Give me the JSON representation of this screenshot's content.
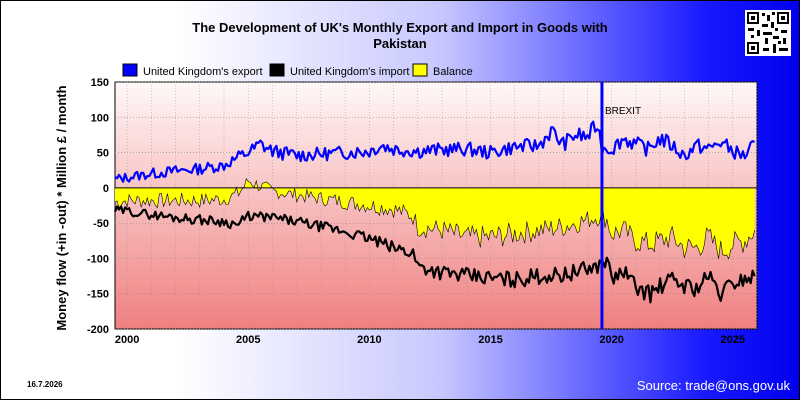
{
  "header": {
    "title_line1": "The Development of UK's Monthly Export and Import in Goods with",
    "title_line2": "Pakistan"
  },
  "footer": {
    "date_stamp": "16.7.2026",
    "source": "Source: trade@ons.gov.uk"
  },
  "colors": {
    "export": "#0000ff",
    "import": "#000000",
    "balance": "#ffff00",
    "brexit_line": "#0000ff"
  },
  "chart_data": {
    "type": "line",
    "ylabel": "Money flow (+in -out) * Million £ / month",
    "ylim": [
      -200,
      150
    ],
    "y_ticks": [
      150,
      100,
      50,
      0,
      -50,
      -100,
      -150,
      -200
    ],
    "xlim": [
      1999.5,
      2026.0
    ],
    "x_ticks": [
      2000,
      2005,
      2010,
      2015,
      2020,
      2025
    ],
    "grid": true,
    "legend_position": "top",
    "annotations": [
      {
        "label": "BREXIT",
        "x": 2019.6
      }
    ],
    "series": [
      {
        "name": "United Kingdom's export",
        "color": "#0000ff",
        "x": [
          1999.5,
          2000,
          2001,
          2002,
          2003,
          2004,
          2004.6,
          2005,
          2005.5,
          2006,
          2007,
          2008,
          2009,
          2010,
          2010.5,
          2011,
          2012,
          2013,
          2014,
          2015,
          2016,
          2017,
          2017.5,
          2018,
          2018.5,
          2019,
          2019.4,
          2019.6,
          2020,
          2020.5,
          2021,
          2021.5,
          2022,
          2022.5,
          2023,
          2023.5,
          2024,
          2024.5,
          2025,
          2025.5,
          2025.9
        ],
        "y": [
          12,
          15,
          20,
          24,
          27,
          32,
          44,
          50,
          62,
          52,
          46,
          48,
          50,
          52,
          60,
          55,
          52,
          54,
          55,
          50,
          58,
          60,
          80,
          62,
          75,
          72,
          90,
          58,
          55,
          70,
          62,
          55,
          70,
          60,
          45,
          60,
          55,
          65,
          52,
          45,
          65
        ]
      },
      {
        "name": "United Kingdom's import",
        "color": "#000000",
        "x": [
          1999.5,
          2000,
          2001,
          2002,
          2003,
          2004,
          2004.6,
          2005,
          2006,
          2007,
          2008,
          2009,
          2010,
          2011,
          2011.8,
          2012,
          2013,
          2014,
          2015,
          2016,
          2017,
          2018,
          2019,
          2019.5,
          2019.8,
          2020,
          2020.5,
          2021,
          2021.6,
          2022,
          2022.5,
          2023,
          2023.5,
          2024,
          2024.5,
          2025,
          2025.5,
          2025.9
        ],
        "y": [
          -32,
          -33,
          -38,
          -42,
          -45,
          -48,
          -52,
          -40,
          -42,
          -48,
          -55,
          -62,
          -72,
          -85,
          -92,
          -110,
          -120,
          -125,
          -128,
          -130,
          -125,
          -123,
          -115,
          -110,
          -100,
          -130,
          -118,
          -140,
          -150,
          -140,
          -130,
          -138,
          -142,
          -125,
          -150,
          -135,
          -128,
          -125
        ]
      },
      {
        "name": "Balance",
        "color": "#ffff00",
        "x": [
          1999.5,
          2000,
          2001,
          2002,
          2003,
          2004,
          2004.6,
          2005,
          2006,
          2007,
          2008,
          2009,
          2010,
          2011,
          2011.8,
          2012,
          2013,
          2014,
          2015,
          2016,
          2017,
          2018,
          2019,
          2019.5,
          2019.8,
          2020,
          2020.5,
          2021,
          2021.6,
          2022,
          2022.5,
          2023,
          2023.5,
          2024,
          2024.5,
          2025,
          2025.5,
          2025.9
        ],
        "y": [
          -20,
          -18,
          -18,
          -18,
          -18,
          -16,
          -8,
          10,
          -5,
          -10,
          -15,
          -20,
          -25,
          -30,
          -40,
          -55,
          -60,
          -70,
          -70,
          -65,
          -60,
          -55,
          -45,
          -40,
          -45,
          -65,
          -60,
          -75,
          -80,
          -75,
          -70,
          -85,
          -85,
          -70,
          -90,
          -80,
          -75,
          -60
        ]
      }
    ]
  }
}
